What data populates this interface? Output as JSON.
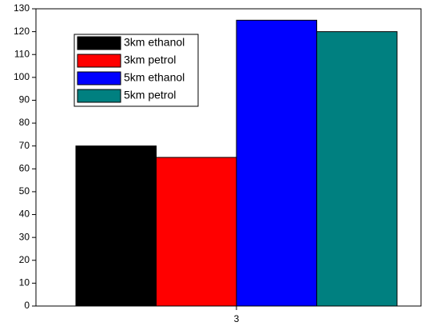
{
  "chart_data": {
    "type": "bar",
    "categories": [
      "3"
    ],
    "series": [
      {
        "name": "3km ethanol",
        "color": "#000000",
        "values": [
          70
        ]
      },
      {
        "name": "3km petrol",
        "color": "#ff0000",
        "values": [
          65
        ]
      },
      {
        "name": "5km ethanol",
        "color": "#0000ff",
        "values": [
          125
        ]
      },
      {
        "name": "5km petrol",
        "color": "#008080",
        "values": [
          120
        ]
      }
    ],
    "ylim": [
      0,
      130
    ],
    "yticks": [
      0,
      10,
      20,
      30,
      40,
      50,
      60,
      70,
      80,
      90,
      100,
      110,
      120,
      130
    ],
    "grid": false,
    "legend": "upper left"
  }
}
